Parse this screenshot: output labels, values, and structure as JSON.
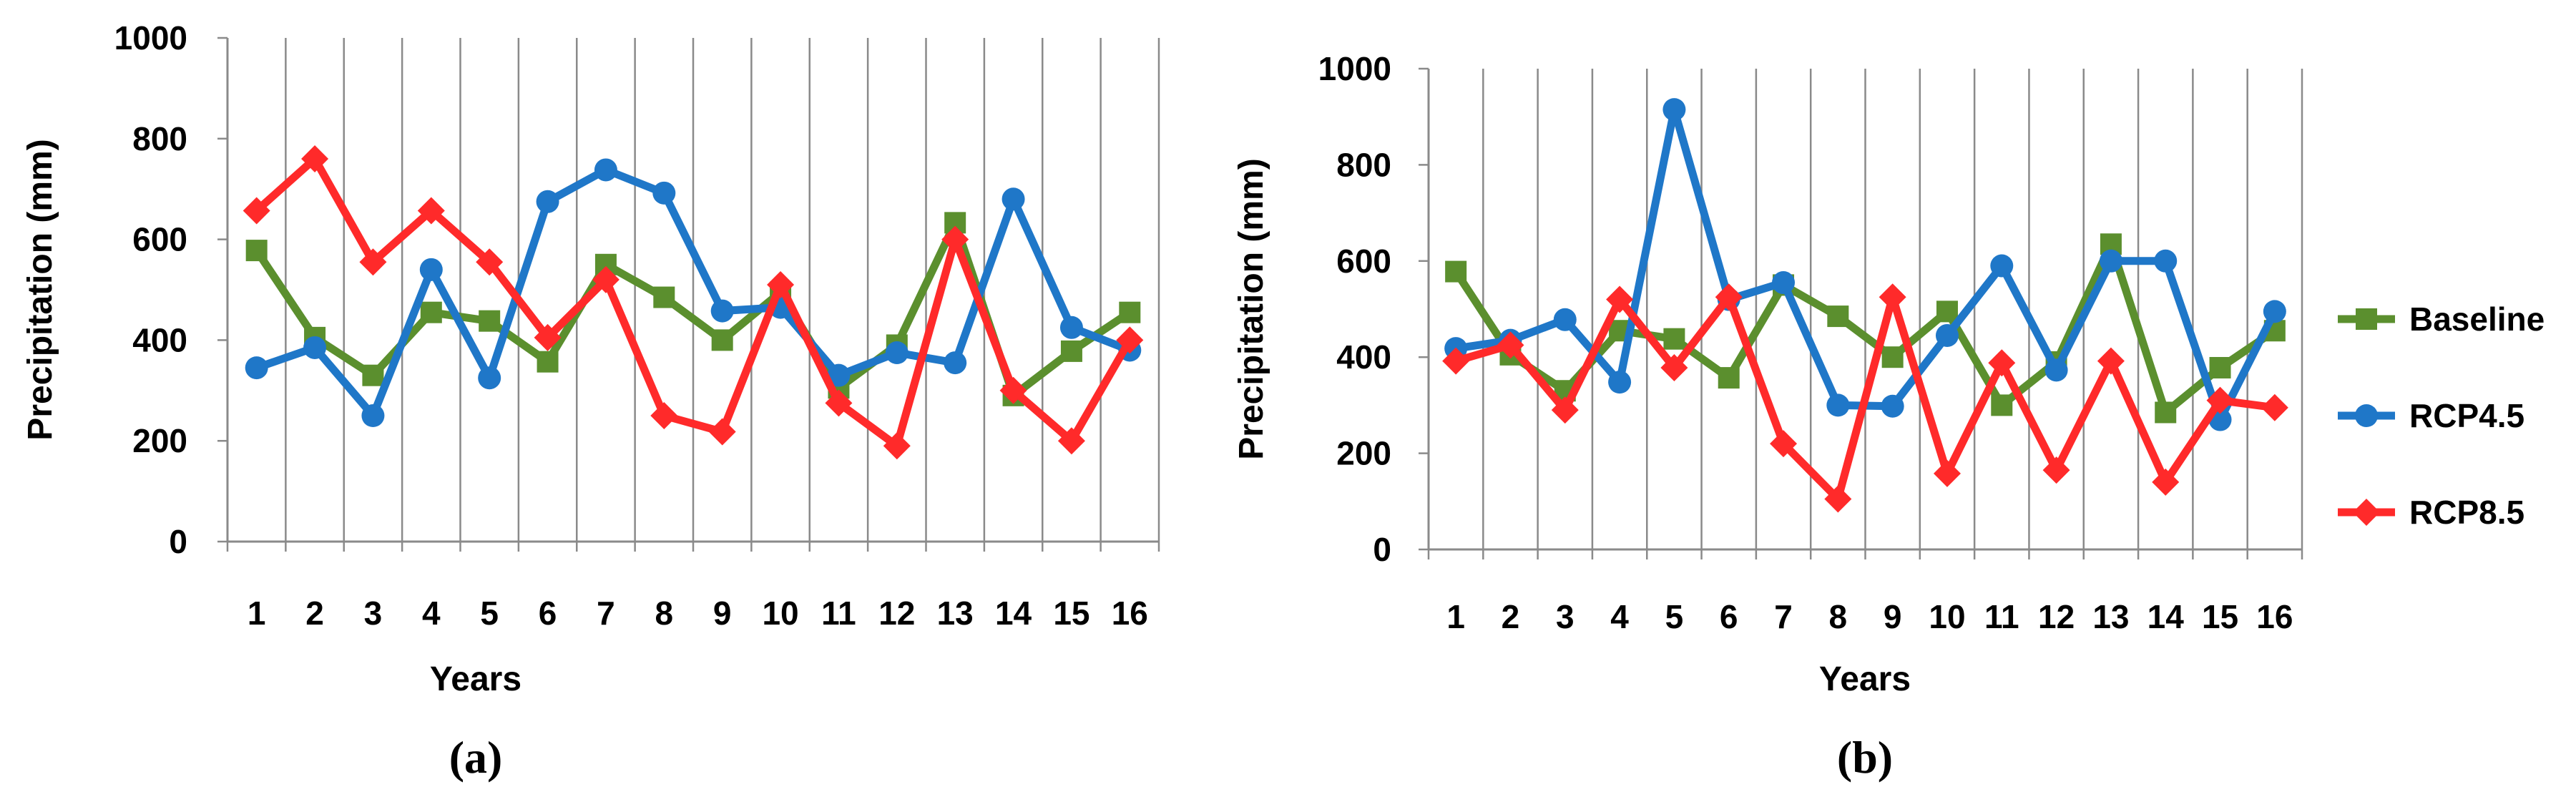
{
  "chart_data": [
    {
      "type": "line",
      "panel_label": "(a)",
      "xlabel": "Years",
      "ylabel": "Precipitation (mm)",
      "ylim": [
        0,
        1000
      ],
      "yticks": [
        "0",
        "200",
        "400",
        "600",
        "800",
        "1000"
      ],
      "categories": [
        "1",
        "2",
        "3",
        "4",
        "5",
        "6",
        "7",
        "8",
        "9",
        "10",
        "11",
        "12",
        "13",
        "14",
        "15",
        "16"
      ],
      "grid": "vertical",
      "series": [
        {
          "name": "Baseline",
          "color": "#5B8F2E",
          "marker": "square",
          "values": [
            578,
            405,
            330,
            455,
            438,
            357,
            550,
            485,
            400,
            495,
            305,
            390,
            633,
            290,
            378,
            455
          ]
        },
        {
          "name": "RCP4.5",
          "color": "#1F77C8",
          "marker": "circle",
          "values": [
            345,
            385,
            250,
            540,
            325,
            675,
            738,
            692,
            458,
            465,
            330,
            375,
            355,
            680,
            425,
            380
          ]
        },
        {
          "name": "RCP8.5",
          "color": "#FF2A2A",
          "marker": "diamond",
          "values": [
            657,
            760,
            555,
            657,
            555,
            405,
            520,
            250,
            218,
            510,
            275,
            190,
            600,
            300,
            200,
            400
          ]
        }
      ]
    },
    {
      "type": "line",
      "panel_label": "(b)",
      "xlabel": "Years",
      "ylabel": "Precipitation (mm)",
      "ylim": [
        0,
        1000
      ],
      "yticks": [
        "0",
        "200",
        "400",
        "600",
        "800",
        "1000"
      ],
      "categories": [
        "1",
        "2",
        "3",
        "4",
        "5",
        "6",
        "7",
        "8",
        "9",
        "10",
        "11",
        "12",
        "13",
        "14",
        "15",
        "16"
      ],
      "grid": "vertical",
      "legend": "right",
      "series": [
        {
          "name": "Baseline",
          "color": "#5B8F2E",
          "marker": "square",
          "values": [
            578,
            405,
            330,
            455,
            438,
            357,
            550,
            485,
            400,
            495,
            300,
            390,
            635,
            285,
            378,
            455
          ]
        },
        {
          "name": "RCP4.5",
          "color": "#1F77C8",
          "marker": "circle",
          "values": [
            418,
            435,
            478,
            348,
            915,
            520,
            555,
            300,
            298,
            445,
            590,
            373,
            600,
            600,
            270,
            495
          ]
        },
        {
          "name": "RCP8.5",
          "color": "#FF2A2A",
          "marker": "diamond",
          "values": [
            392,
            425,
            290,
            520,
            378,
            525,
            220,
            105,
            525,
            158,
            388,
            165,
            392,
            140,
            310,
            295
          ]
        }
      ]
    }
  ]
}
